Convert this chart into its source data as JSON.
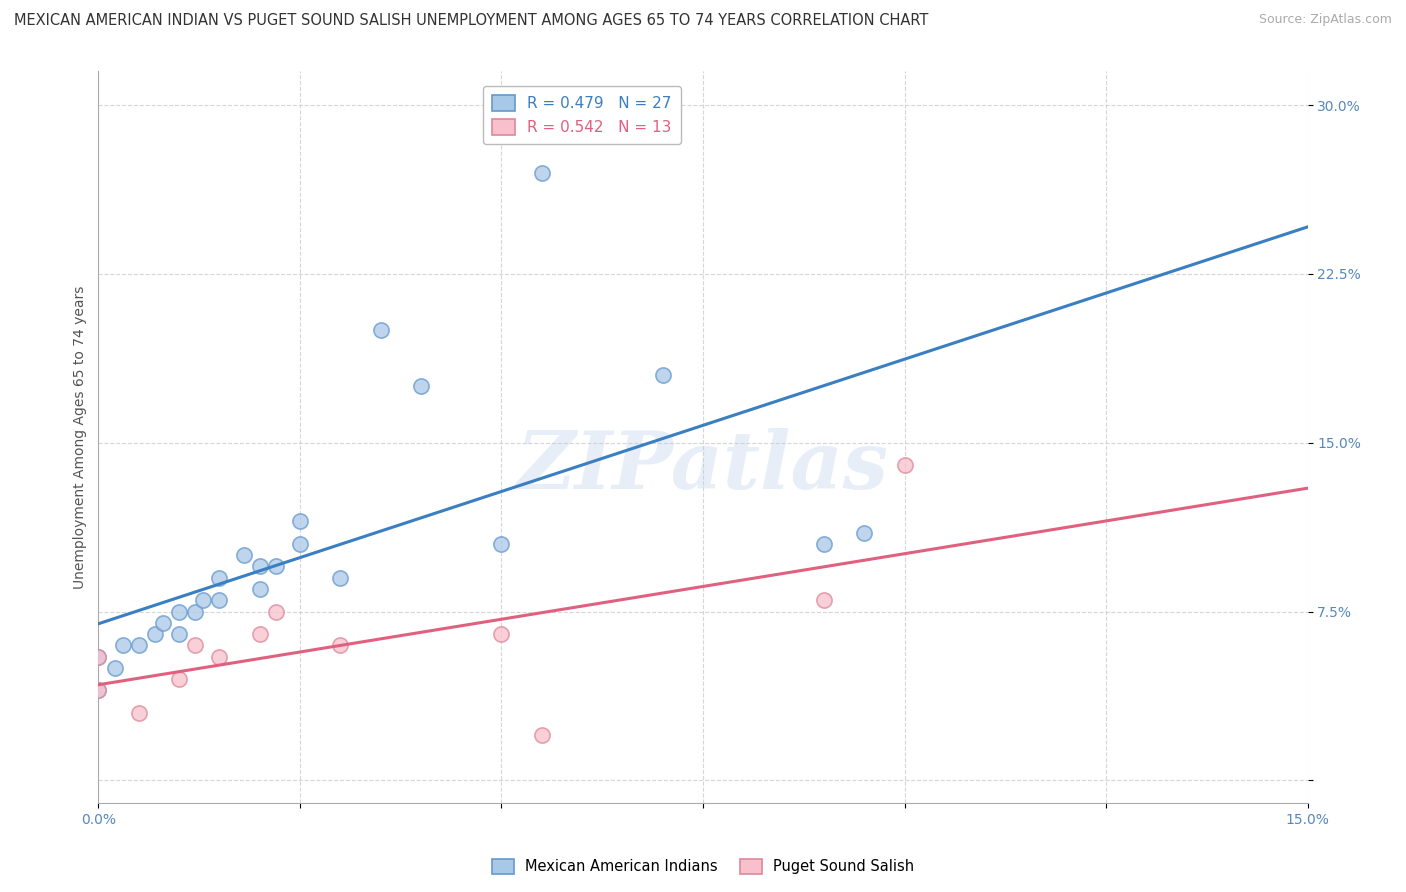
{
  "title": "MEXICAN AMERICAN INDIAN VS PUGET SOUND SALISH UNEMPLOYMENT AMONG AGES 65 TO 74 YEARS CORRELATION CHART",
  "source": "Source: ZipAtlas.com",
  "ylabel": "Unemployment Among Ages 65 to 74 years",
  "xlim": [
    0.0,
    0.15
  ],
  "ylim": [
    -0.01,
    0.315
  ],
  "xticks": [
    0.0,
    0.025,
    0.05,
    0.075,
    0.1,
    0.125,
    0.15
  ],
  "yticks": [
    0.0,
    0.075,
    0.15,
    0.225,
    0.3
  ],
  "xticklabels": [
    "0.0%",
    "",
    "",
    "",
    "",
    "",
    "15.0%"
  ],
  "yticklabels": [
    "",
    "7.5%",
    "15.0%",
    "22.5%",
    "30.0%"
  ],
  "blue_R": 0.479,
  "blue_N": 27,
  "pink_R": 0.542,
  "pink_N": 13,
  "blue_color": "#a8c8e8",
  "blue_edge_color": "#6699cc",
  "pink_color": "#f8c0cc",
  "pink_edge_color": "#dd8899",
  "blue_line_color": "#3a7fc1",
  "pink_line_color": "#e06080",
  "background_color": "#ffffff",
  "grid_color": "#cccccc",
  "watermark": "ZIPatlas",
  "blue_points_x": [
    0.0,
    0.0,
    0.002,
    0.003,
    0.005,
    0.007,
    0.008,
    0.01,
    0.01,
    0.012,
    0.013,
    0.015,
    0.015,
    0.018,
    0.02,
    0.02,
    0.022,
    0.025,
    0.025,
    0.03,
    0.035,
    0.04,
    0.05,
    0.055,
    0.07,
    0.09,
    0.095
  ],
  "blue_points_y": [
    0.04,
    0.055,
    0.05,
    0.06,
    0.06,
    0.065,
    0.07,
    0.065,
    0.075,
    0.075,
    0.08,
    0.08,
    0.09,
    0.1,
    0.085,
    0.095,
    0.095,
    0.105,
    0.115,
    0.09,
    0.2,
    0.175,
    0.105,
    0.27,
    0.18,
    0.105,
    0.11
  ],
  "pink_points_x": [
    0.0,
    0.0,
    0.005,
    0.01,
    0.012,
    0.015,
    0.02,
    0.022,
    0.03,
    0.05,
    0.055,
    0.09,
    0.1
  ],
  "pink_points_y": [
    0.04,
    0.055,
    0.03,
    0.045,
    0.06,
    0.055,
    0.065,
    0.075,
    0.06,
    0.065,
    0.02,
    0.08,
    0.14
  ],
  "title_fontsize": 10.5,
  "tick_fontsize": 10,
  "legend_fontsize": 11,
  "ylabel_fontsize": 10
}
